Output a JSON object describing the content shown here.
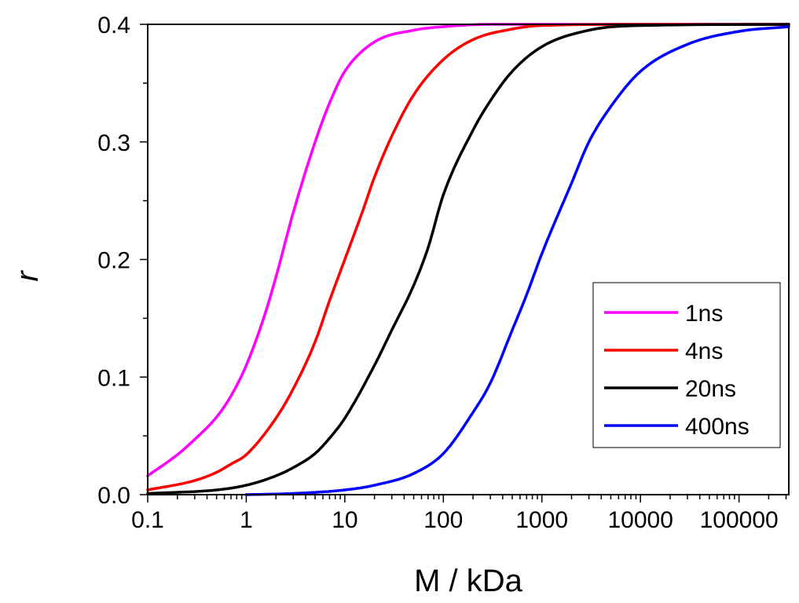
{
  "chart_data": {
    "type": "line",
    "xlabel": "M / kDa",
    "ylabel": "r",
    "xscale": "log",
    "xlim": [
      0.1,
      320000
    ],
    "ylim": [
      0.0,
      0.4
    ],
    "x_ticks": [
      0.1,
      1,
      10,
      100,
      1000,
      10000,
      100000
    ],
    "x_tick_labels": [
      "0.1",
      "1",
      "10",
      "100",
      "1000",
      "10000",
      "100000"
    ],
    "y_ticks": [
      0.0,
      0.1,
      0.2,
      0.3,
      0.4
    ],
    "y_tick_labels": [
      "0.0",
      "0.1",
      "0.2",
      "0.3",
      "0.4"
    ],
    "legend": {
      "position": "right-middle"
    },
    "series": [
      {
        "name": "1ns",
        "color": "#ff00ff",
        "x": [
          0.1,
          0.2,
          0.3,
          0.5,
          0.7,
          1,
          1.5,
          2,
          3,
          5,
          7,
          10,
          20,
          50,
          100,
          300,
          1000,
          10000,
          320000
        ],
        "y": [
          0.016,
          0.034,
          0.047,
          0.066,
          0.084,
          0.11,
          0.15,
          0.185,
          0.24,
          0.3,
          0.333,
          0.36,
          0.385,
          0.395,
          0.398,
          0.4,
          0.4,
          0.4,
          0.4
        ]
      },
      {
        "name": "4ns",
        "color": "#ff0000",
        "x": [
          0.1,
          0.3,
          0.5,
          0.7,
          1,
          2,
          3,
          5,
          7,
          10,
          15,
          20,
          30,
          50,
          100,
          200,
          500,
          1000,
          10000,
          320000
        ],
        "y": [
          0.004,
          0.012,
          0.019,
          0.026,
          0.034,
          0.065,
          0.09,
          0.13,
          0.165,
          0.2,
          0.24,
          0.27,
          0.305,
          0.34,
          0.37,
          0.387,
          0.396,
          0.399,
          0.4,
          0.4
        ]
      },
      {
        "name": "20ns",
        "color": "#000000",
        "x": [
          0.1,
          0.5,
          1,
          2,
          3,
          5,
          7,
          10,
          20,
          30,
          50,
          70,
          100,
          200,
          300,
          500,
          1000,
          3000,
          10000,
          320000
        ],
        "y": [
          0.001,
          0.004,
          0.008,
          0.016,
          0.023,
          0.035,
          0.048,
          0.065,
          0.11,
          0.14,
          0.178,
          0.21,
          0.255,
          0.31,
          0.335,
          0.36,
          0.381,
          0.395,
          0.399,
          0.4
        ]
      },
      {
        "name": "400ns",
        "color": "#0000ff",
        "x": [
          1,
          3,
          10,
          20,
          50,
          100,
          200,
          300,
          500,
          700,
          1000,
          2000,
          3000,
          5000,
          10000,
          30000,
          100000,
          320000
        ],
        "y": [
          0.0,
          0.001,
          0.004,
          0.008,
          0.018,
          0.035,
          0.07,
          0.095,
          0.14,
          0.17,
          0.205,
          0.265,
          0.3,
          0.33,
          0.36,
          0.383,
          0.394,
          0.398
        ]
      }
    ]
  }
}
